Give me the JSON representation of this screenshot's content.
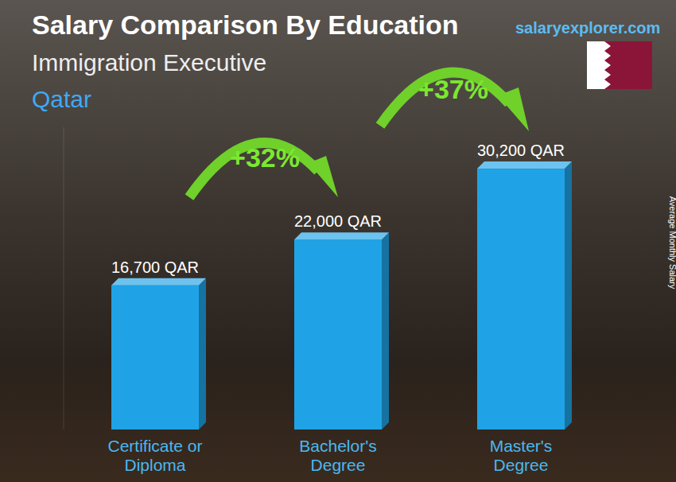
{
  "chart_data": {
    "type": "bar",
    "title": "Salary Comparison By Education",
    "subtitle": "Immigration Executive",
    "location": "Qatar",
    "source": "salaryexplorer.com",
    "y_label": "Average Monthly Salary",
    "categories": [
      "Certificate or Diploma",
      "Bachelor's Degree",
      "Master's Degree"
    ],
    "values": [
      16700,
      22000,
      30200
    ],
    "value_labels": [
      "16,700 QAR",
      "22,000 QAR",
      "30,200 QAR"
    ],
    "annotations": [
      "+32%",
      "+37%"
    ],
    "color": "#1fa3e6",
    "ylim": [
      0,
      35000
    ],
    "data_labels": true,
    "tick_labels": "x",
    "grid": false
  }
}
